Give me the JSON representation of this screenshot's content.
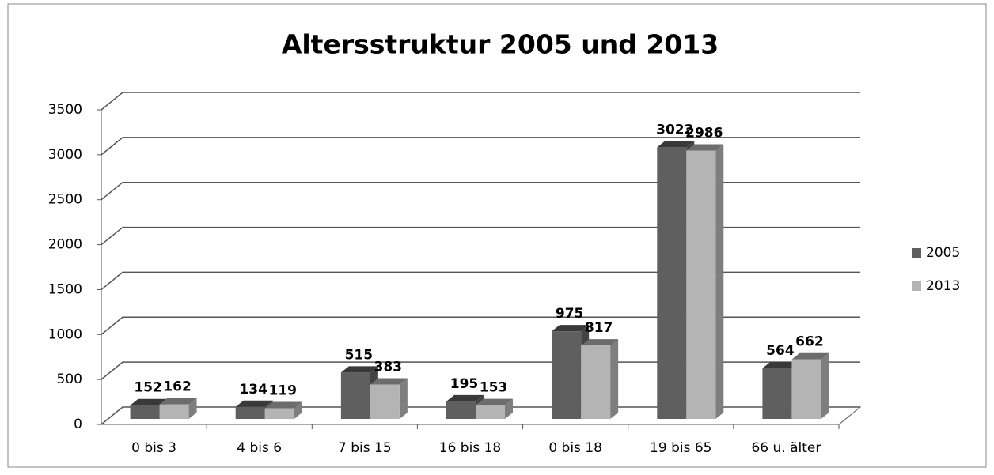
{
  "chart_data": {
    "type": "bar",
    "title": "Altersstruktur 2005 und 2013",
    "categories": [
      "0 bis 3",
      "4 bis 6",
      "7 bis 15",
      "16 bis 18",
      "0 bis 18",
      "19 bis 65",
      "66 u. älter"
    ],
    "series": [
      {
        "name": "2005",
        "color": "#5f5f5f",
        "values": [
          152,
          134,
          515,
          195,
          975,
          3022,
          564
        ]
      },
      {
        "name": "2013",
        "color": "#b4b4b4",
        "values": [
          162,
          119,
          383,
          153,
          817,
          2986,
          662
        ]
      }
    ],
    "ylim": [
      0,
      3500
    ],
    "yticks": [
      0,
      500,
      1000,
      1500,
      2000,
      2500,
      3000,
      3500
    ],
    "grid": true,
    "legend": "right"
  }
}
